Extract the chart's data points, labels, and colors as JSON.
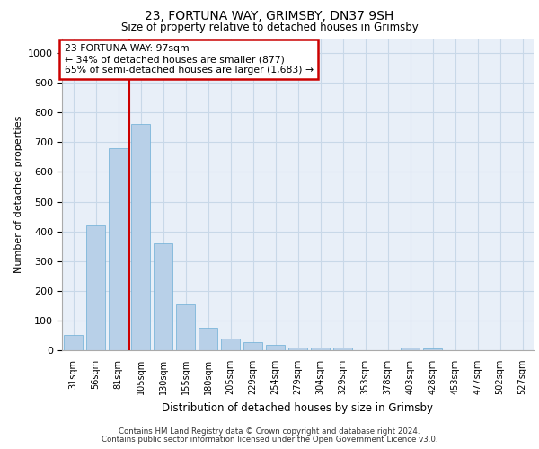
{
  "title1": "23, FORTUNA WAY, GRIMSBY, DN37 9SH",
  "title2": "Size of property relative to detached houses in Grimsby",
  "xlabel": "Distribution of detached houses by size in Grimsby",
  "ylabel": "Number of detached properties",
  "categories": [
    "31sqm",
    "56sqm",
    "81sqm",
    "105sqm",
    "130sqm",
    "155sqm",
    "180sqm",
    "205sqm",
    "229sqm",
    "254sqm",
    "279sqm",
    "304sqm",
    "329sqm",
    "353sqm",
    "378sqm",
    "403sqm",
    "428sqm",
    "453sqm",
    "477sqm",
    "502sqm",
    "527sqm"
  ],
  "values": [
    50,
    420,
    680,
    760,
    360,
    155,
    75,
    38,
    27,
    18,
    10,
    8,
    8,
    0,
    0,
    8,
    7,
    0,
    0,
    0,
    0
  ],
  "bar_color": "#b8d0e8",
  "bar_edge_color": "#6baed6",
  "vline_x": 2.5,
  "vline_color": "#cc0000",
  "annotation_text": "23 FORTUNA WAY: 97sqm\n← 34% of detached houses are smaller (877)\n65% of semi-detached houses are larger (1,683) →",
  "annotation_box_color": "#cc0000",
  "ylim": [
    0,
    1050
  ],
  "yticks": [
    0,
    100,
    200,
    300,
    400,
    500,
    600,
    700,
    800,
    900,
    1000
  ],
  "grid_color": "#c8d8e8",
  "background_color": "#e8eff8",
  "footer1": "Contains HM Land Registry data © Crown copyright and database right 2024.",
  "footer2": "Contains public sector information licensed under the Open Government Licence v3.0."
}
